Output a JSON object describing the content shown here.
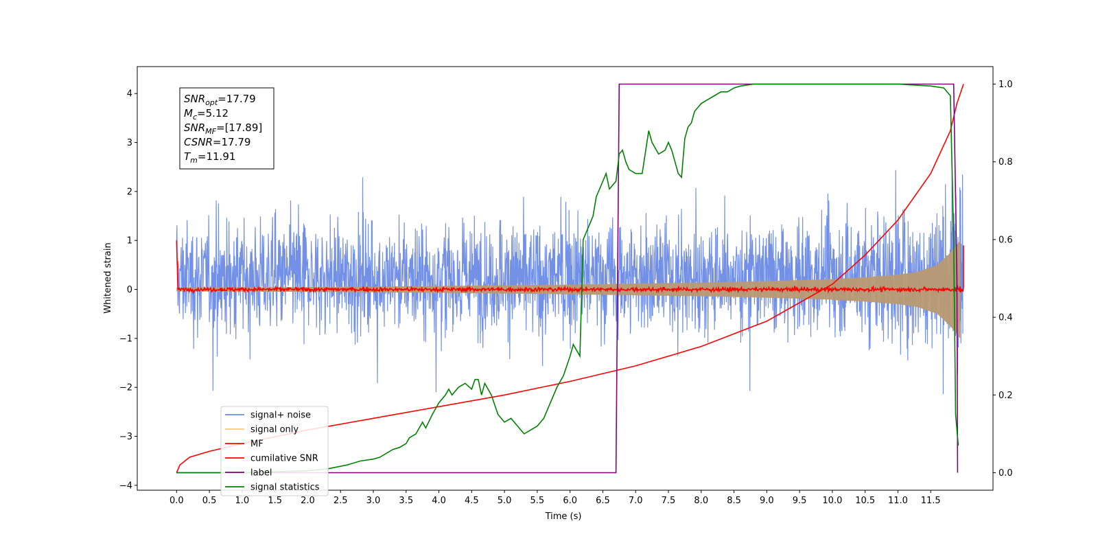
{
  "chart_data": {
    "type": "line",
    "xlabel": "Time (s)",
    "ylabel": "Whitened strain",
    "y2label": "",
    "xlim": [
      -0.6,
      12.45
    ],
    "ylim": [
      -4.1,
      4.55
    ],
    "y2lim": [
      -0.045,
      1.045
    ],
    "grid": false,
    "x_ticks": [
      0.0,
      0.5,
      1.0,
      1.5,
      2.0,
      2.5,
      3.0,
      3.5,
      4.0,
      4.5,
      5.0,
      5.5,
      6.0,
      6.5,
      7.0,
      7.5,
      8.0,
      8.5,
      9.0,
      9.5,
      10.0,
      10.5,
      11.0,
      11.5
    ],
    "x_tick_labels": [
      "0.0",
      "0.5",
      "1.0",
      "1.5",
      "2.0",
      "2.5",
      "3.0",
      "3.5",
      "4.0",
      "4.5",
      "5.0",
      "5.5",
      "6.0",
      "6.5",
      "7.0",
      "7.5",
      "8.0",
      "8.5",
      "9.0",
      "9.5",
      "10.0",
      "10.5",
      "11.0",
      "11.5"
    ],
    "y_ticks": [
      4,
      3,
      2,
      1,
      0,
      -1,
      -2,
      -3,
      -4
    ],
    "y_tick_labels": [
      "4",
      "3",
      "2",
      "1",
      "0",
      "−1",
      "−2",
      "−3",
      "−4"
    ],
    "y2_ticks": [
      1.0,
      0.8,
      0.6,
      0.4,
      0.2,
      0.0
    ],
    "y2_tick_labels": [
      "1.0",
      "0.8",
      "0.6",
      "0.4",
      "0.2",
      "0.0"
    ],
    "info_box": [
      {
        "base": "SNR",
        "sub": "opt",
        "rest": "=17.79"
      },
      {
        "base": "M",
        "sub": "c",
        "rest": "=5.12"
      },
      {
        "base": "SNR",
        "sub": "MF",
        "rest": "=[17.89]"
      },
      {
        "base": "CSNR",
        "sub": "",
        "rest": "=17.79"
      },
      {
        "base": "T",
        "sub": "m",
        "rest": "=11.91"
      }
    ],
    "legend_position": "lower-left",
    "series": [
      {
        "name": "signal+ noise",
        "color": "#6b8ae6",
        "axis": "left",
        "style": "noise band, roughly -2.8 to 3 with growing envelope near merger"
      },
      {
        "name": "signal only",
        "color": "#f5c168",
        "axis": "left",
        "envelope": {
          "t": [
            0,
            2,
            4,
            6,
            8,
            9,
            10,
            10.5,
            11,
            11.3,
            11.6,
            11.8,
            11.95
          ],
          "amp": [
            0.04,
            0.05,
            0.07,
            0.1,
            0.14,
            0.17,
            0.21,
            0.25,
            0.3,
            0.36,
            0.5,
            0.75,
            1.0
          ]
        }
      },
      {
        "name": "MF",
        "color": "#ff0000",
        "axis": "left",
        "style": "noisy line near 0 (about ±0.08), spike to 1.0 at t=0"
      },
      {
        "name": "cumilative SNR",
        "color": "#ff0000",
        "axis": "right",
        "x": [
          0,
          0.05,
          0.2,
          0.5,
          1,
          2,
          3,
          4,
          5,
          6,
          7,
          8,
          9,
          10,
          10.5,
          11,
          11.5,
          11.8,
          11.9,
          12.0
        ],
        "y": [
          0.0,
          0.02,
          0.04,
          0.055,
          0.075,
          0.11,
          0.14,
          0.17,
          0.2,
          0.235,
          0.275,
          0.325,
          0.39,
          0.485,
          0.56,
          0.65,
          0.77,
          0.88,
          0.95,
          1.0
        ]
      },
      {
        "name": "label",
        "color": "#800080",
        "axis": "right",
        "x": [
          0,
          6.7,
          6.75,
          11.85,
          11.9,
          11.91
        ],
        "y": [
          0,
          0,
          1,
          1,
          0.5,
          0
        ]
      },
      {
        "name": "signal statistics",
        "color": "#008000",
        "axis": "right",
        "x": [
          0,
          1,
          2,
          2.3,
          2.6,
          2.8,
          3.0,
          3.1,
          3.2,
          3.3,
          3.4,
          3.5,
          3.55,
          3.65,
          3.75,
          3.8,
          3.9,
          4.0,
          4.1,
          4.15,
          4.2,
          4.3,
          4.4,
          4.5,
          4.55,
          4.6,
          4.65,
          4.7,
          4.8,
          4.9,
          5.0,
          5.1,
          5.2,
          5.3,
          5.4,
          5.5,
          5.6,
          5.7,
          5.8,
          5.9,
          6.0,
          6.05,
          6.15,
          6.2,
          6.25,
          6.35,
          6.4,
          6.45,
          6.55,
          6.6,
          6.7,
          6.75,
          6.8,
          6.85,
          6.9,
          7.0,
          7.1,
          7.2,
          7.25,
          7.35,
          7.45,
          7.5,
          7.55,
          7.6,
          7.65,
          7.7,
          7.75,
          7.8,
          7.85,
          7.9,
          8.0,
          8.1,
          8.2,
          8.3,
          8.4,
          8.5,
          8.6,
          8.8,
          9.0,
          9.5,
          10.0,
          10.5,
          11.0,
          11.5,
          11.7,
          11.8,
          11.85,
          11.88,
          11.92
        ],
        "y": [
          0.0,
          0.0,
          0.005,
          0.01,
          0.02,
          0.03,
          0.035,
          0.04,
          0.05,
          0.06,
          0.065,
          0.075,
          0.09,
          0.1,
          0.13,
          0.115,
          0.15,
          0.18,
          0.2,
          0.215,
          0.2,
          0.22,
          0.23,
          0.215,
          0.24,
          0.24,
          0.2,
          0.23,
          0.2,
          0.15,
          0.13,
          0.14,
          0.12,
          0.1,
          0.11,
          0.12,
          0.14,
          0.18,
          0.22,
          0.25,
          0.3,
          0.33,
          0.3,
          0.6,
          0.62,
          0.66,
          0.71,
          0.73,
          0.77,
          0.73,
          0.75,
          0.82,
          0.83,
          0.8,
          0.78,
          0.77,
          0.77,
          0.88,
          0.85,
          0.82,
          0.83,
          0.85,
          0.83,
          0.8,
          0.77,
          0.76,
          0.86,
          0.89,
          0.9,
          0.93,
          0.95,
          0.96,
          0.97,
          0.98,
          0.98,
          0.99,
          0.995,
          1.0,
          1.0,
          1.0,
          1.0,
          1.0,
          1.0,
          0.995,
          0.99,
          0.97,
          0.6,
          0.15,
          0.07
        ]
      }
    ]
  }
}
